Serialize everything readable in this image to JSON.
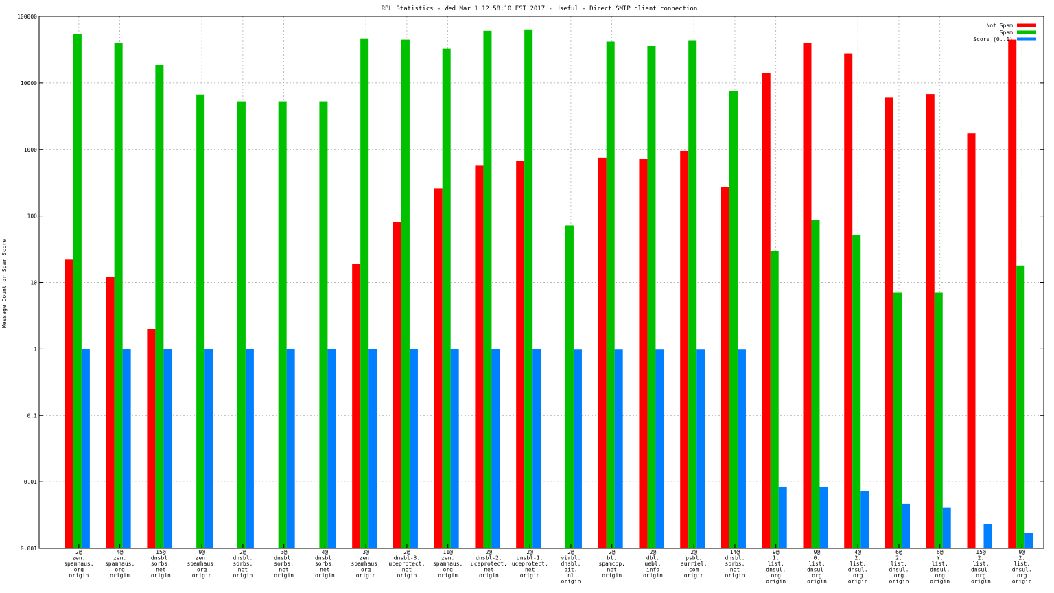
{
  "chart_data": {
    "type": "bar",
    "title": "RBL Statistics - Wed Mar  1 12:58:10 EST 2017 - Useful - Direct SMTP client connection",
    "ylabel": "Message Count or Spam Score",
    "yscale": "log",
    "ylim": [
      0.001,
      100000
    ],
    "yticks": [
      "0.001",
      "0.01",
      "0.1",
      "1",
      "10",
      "100",
      "1000",
      "10000",
      "100000"
    ],
    "grid": true,
    "legend_position": "top-right",
    "colors": {
      "not_spam": "#ff0000",
      "spam": "#00c000",
      "score": "#0080ff"
    },
    "categories": [
      [
        "2@",
        "zen.",
        "spamhaus.",
        "org",
        "origin"
      ],
      [
        "4@",
        "zen.",
        "spamhaus.",
        "org",
        "origin"
      ],
      [
        "15@",
        "dnsbl.",
        "sorbs.",
        "net",
        "origin"
      ],
      [
        "9@",
        "zen.",
        "spamhaus.",
        "org",
        "origin"
      ],
      [
        "2@",
        "dnsbl.",
        "sorbs.",
        "net",
        "origin"
      ],
      [
        "3@",
        "dnsbl.",
        "sorbs.",
        "net",
        "origin"
      ],
      [
        "4@",
        "dnsbl.",
        "sorbs.",
        "net",
        "origin"
      ],
      [
        "3@",
        "zen.",
        "spamhaus.",
        "org",
        "origin"
      ],
      [
        "2@",
        "dnsbl-3.",
        "uceprotect.",
        "net",
        "origin"
      ],
      [
        "11@",
        "zen.",
        "spamhaus.",
        "org",
        "origin"
      ],
      [
        "2@",
        "dnsbl-2.",
        "uceprotect.",
        "net",
        "origin"
      ],
      [
        "2@",
        "dnsbl-1.",
        "uceprotect.",
        "net",
        "origin"
      ],
      [
        "2@",
        "virbl.",
        "dnsbl.",
        "bit.",
        "nl",
        "origin"
      ],
      [
        "2@",
        "bl.",
        "spamcop.",
        "net",
        "origin"
      ],
      [
        "2@",
        "dbl.",
        "uebl.",
        "info",
        "origin"
      ],
      [
        "2@",
        "psbl.",
        "surriel.",
        "com",
        "origin"
      ],
      [
        "14@",
        "dnsbl.",
        "sorbs.",
        "net",
        "origin"
      ],
      [
        "9@",
        "1.",
        "list.",
        "dnsul.",
        "org",
        "origin"
      ],
      [
        "9@",
        "0.",
        "list.",
        "dnsul.",
        "org",
        "origin"
      ],
      [
        "4@",
        "2.",
        "list.",
        "dnsul.",
        "org",
        "origin"
      ],
      [
        "6@",
        "2.",
        "list.",
        "dnsul.",
        "org",
        "origin"
      ],
      [
        "6@",
        "Y.",
        "list.",
        "dnsul.",
        "org",
        "origin"
      ],
      [
        "15@",
        "2.",
        "list.",
        "dnsul.",
        "org",
        "origin"
      ],
      [
        "9@",
        "2.",
        "list.",
        "dnsul.",
        "org",
        "origin"
      ]
    ],
    "series": [
      {
        "name": "Not Spam",
        "color": "#ff0000",
        "values": [
          22,
          12,
          2,
          null,
          null,
          null,
          null,
          19,
          80,
          260,
          570,
          670,
          null,
          750,
          730,
          950,
          270,
          14000,
          40000,
          28000,
          6000,
          6800,
          1750,
          45000
        ]
      },
      {
        "name": "Spam",
        "color": "#00c000",
        "values": [
          55000,
          40000,
          18500,
          6700,
          5300,
          5300,
          5300,
          46000,
          45000,
          33000,
          61000,
          64000,
          72,
          42000,
          36000,
          43000,
          7500,
          30,
          88,
          51,
          7,
          7,
          null,
          18
        ]
      },
      {
        "name": "Score (0..1)",
        "color": "#0080ff",
        "values": [
          1,
          1,
          1,
          1,
          1,
          1,
          1,
          1,
          1,
          1,
          1,
          1,
          0.98,
          0.98,
          0.98,
          0.98,
          0.98,
          0.0085,
          0.0085,
          0.0072,
          0.0047,
          0.0041,
          0.0023,
          0.0017
        ]
      }
    ]
  }
}
